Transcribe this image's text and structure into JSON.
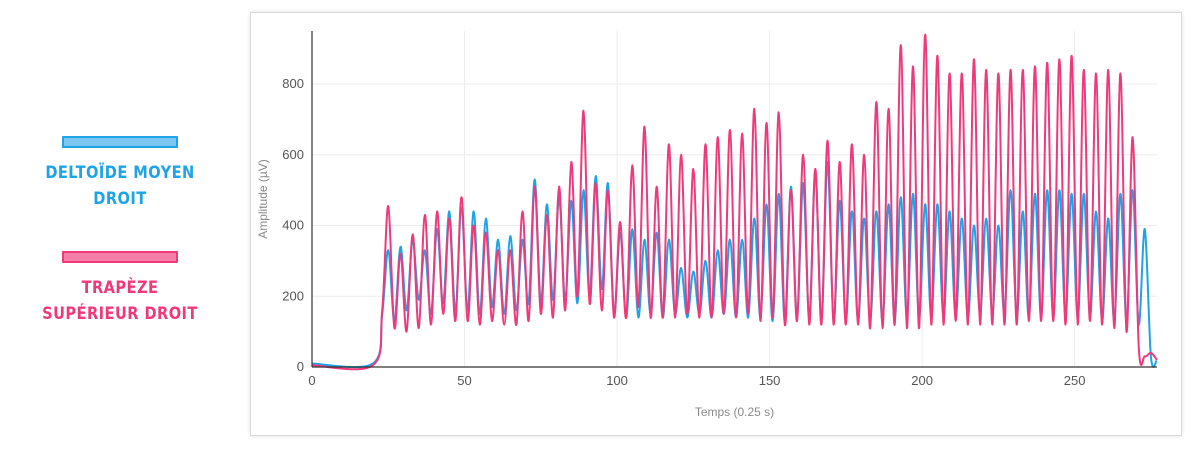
{
  "legend": {
    "items": [
      {
        "label": "DELTOÏDE MOYEN DROIT",
        "color": "#1ea3e6",
        "fill": "#7cc6ef"
      },
      {
        "label": "TRAPÈZE SUPÉRIEUR DROIT",
        "color": "#f0397a",
        "fill": "#f57fa8"
      }
    ]
  },
  "chart_data": {
    "type": "line",
    "xlabel": "Temps (0.25 s)",
    "ylabel": "Amplitude (µV)",
    "xlim": [
      0,
      277
    ],
    "ylim": [
      0,
      950
    ],
    "xticks": [
      "0",
      "50",
      "100",
      "150",
      "200",
      "250"
    ],
    "yticks": [
      "0",
      "200",
      "400",
      "600",
      "800"
    ],
    "grid": true,
    "series": [
      {
        "name": "DELTOÏDE MOYEN DROIT",
        "color": "#1ea3e6",
        "x": [
          0,
          20,
          23,
          25,
          27,
          29,
          31,
          33,
          35,
          37,
          39,
          41,
          43,
          45,
          47,
          49,
          51,
          53,
          55,
          57,
          59,
          61,
          63,
          65,
          67,
          69,
          71,
          73,
          75,
          77,
          79,
          81,
          83,
          85,
          87,
          89,
          91,
          93,
          95,
          97,
          99,
          101,
          103,
          105,
          107,
          109,
          111,
          113,
          115,
          117,
          119,
          121,
          123,
          125,
          127,
          129,
          131,
          133,
          135,
          137,
          139,
          141,
          143,
          145,
          147,
          149,
          151,
          153,
          155,
          157,
          159,
          161,
          163,
          165,
          167,
          169,
          171,
          173,
          175,
          177,
          179,
          181,
          183,
          185,
          187,
          189,
          191,
          193,
          195,
          197,
          199,
          201,
          203,
          205,
          207,
          209,
          211,
          213,
          215,
          217,
          219,
          221,
          223,
          225,
          227,
          229,
          231,
          233,
          235,
          237,
          239,
          241,
          243,
          245,
          247,
          249,
          251,
          253,
          255,
          257,
          259,
          261,
          263,
          265,
          267,
          269,
          271,
          273,
          275,
          277
        ],
        "values": [
          10,
          10,
          150,
          330,
          130,
          340,
          160,
          360,
          190,
          330,
          150,
          390,
          180,
          440,
          160,
          450,
          160,
          440,
          150,
          420,
          170,
          360,
          150,
          370,
          160,
          360,
          180,
          530,
          180,
          460,
          190,
          480,
          190,
          470,
          180,
          500,
          200,
          540,
          220,
          520,
          150,
          380,
          140,
          390,
          140,
          360,
          150,
          380,
          140,
          360,
          150,
          280,
          140,
          270,
          150,
          300,
          140,
          330,
          150,
          360,
          140,
          360,
          140,
          420,
          140,
          460,
          130,
          490,
          130,
          510,
          140,
          520,
          140,
          550,
          130,
          580,
          130,
          470,
          130,
          440,
          130,
          420,
          130,
          440,
          130,
          460,
          130,
          480,
          140,
          490,
          140,
          460,
          140,
          460,
          140,
          440,
          140,
          420,
          140,
          400,
          150,
          420,
          150,
          400,
          150,
          500,
          140,
          440,
          140,
          490,
          140,
          500,
          140,
          500,
          140,
          490,
          140,
          490,
          140,
          440,
          130,
          420,
          130,
          490,
          130,
          500,
          120,
          390,
          30,
          20
        ],
        "samples": [
          10,
          10,
          150,
          330,
          130,
          340,
          160,
          360,
          190,
          330,
          150,
          390,
          180,
          440,
          160,
          450,
          160,
          440,
          150,
          420,
          170,
          360,
          150,
          370,
          160,
          360,
          180,
          530,
          180,
          460,
          190,
          480,
          190,
          470,
          180,
          500,
          200,
          540,
          220,
          520,
          150,
          380,
          140,
          390,
          140,
          360,
          150,
          380,
          140,
          360,
          150,
          280,
          140,
          270,
          150,
          300,
          140,
          330,
          150,
          360,
          140,
          360,
          140,
          420,
          140,
          460,
          130,
          490,
          130,
          510,
          140,
          520,
          140,
          550,
          130,
          580,
          130,
          470,
          130,
          440,
          130,
          420,
          130,
          440,
          130,
          460,
          130,
          480,
          140,
          490,
          140,
          460,
          140,
          460,
          140,
          440,
          140,
          420,
          140,
          400,
          150,
          420,
          150,
          400,
          150,
          500,
          140,
          440,
          140,
          490,
          140,
          500,
          140,
          500,
          140,
          490,
          140,
          490,
          140,
          440,
          130,
          420,
          130,
          490,
          130,
          500,
          120,
          390,
          30,
          20
        ]
      },
      {
        "name": "TRAPÈZE SUPÉRIEUR DROIT",
        "color": "#f0397a",
        "x": [
          0,
          20,
          23,
          25,
          27,
          29,
          31,
          33,
          35,
          37,
          39,
          41,
          43,
          45,
          47,
          49,
          51,
          53,
          55,
          57,
          59,
          61,
          63,
          65,
          67,
          69,
          71,
          73,
          75,
          77,
          79,
          81,
          83,
          85,
          87,
          89,
          91,
          93,
          95,
          97,
          99,
          101,
          103,
          105,
          107,
          109,
          111,
          113,
          115,
          117,
          119,
          121,
          123,
          125,
          127,
          129,
          131,
          133,
          135,
          137,
          139,
          141,
          143,
          145,
          147,
          149,
          151,
          153,
          155,
          157,
          159,
          161,
          163,
          165,
          167,
          169,
          171,
          173,
          175,
          177,
          179,
          181,
          183,
          185,
          187,
          189,
          191,
          193,
          195,
          197,
          199,
          201,
          203,
          205,
          207,
          209,
          211,
          213,
          215,
          217,
          219,
          221,
          223,
          225,
          227,
          229,
          231,
          233,
          235,
          237,
          239,
          241,
          243,
          245,
          247,
          249,
          251,
          253,
          255,
          257,
          259,
          261,
          263,
          265,
          267,
          269,
          271,
          273,
          275,
          277
        ],
        "values": [
          5,
          5,
          160,
          455,
          110,
          320,
          100,
          375,
          110,
          430,
          120,
          440,
          150,
          420,
          130,
          480,
          130,
          400,
          120,
          380,
          130,
          330,
          120,
          330,
          120,
          440,
          130,
          510,
          150,
          430,
          140,
          510,
          160,
          580,
          200,
          725,
          180,
          520,
          160,
          500,
          140,
          410,
          140,
          570,
          170,
          680,
          140,
          510,
          140,
          630,
          140,
          600,
          150,
          560,
          140,
          630,
          140,
          650,
          150,
          670,
          140,
          660,
          150,
          730,
          130,
          690,
          140,
          720,
          120,
          500,
          130,
          600,
          120,
          560,
          120,
          640,
          120,
          580,
          120,
          630,
          120,
          600,
          110,
          750,
          110,
          730,
          120,
          910,
          110,
          850,
          110,
          940,
          120,
          880,
          120,
          830,
          130,
          830,
          120,
          870,
          120,
          840,
          120,
          830,
          120,
          840,
          120,
          840,
          130,
          850,
          130,
          860,
          130,
          870,
          120,
          880,
          120,
          840,
          130,
          830,
          120,
          840,
          110,
          830,
          100,
          650,
          60,
          30,
          40,
          20
        ],
        "samples": [
          5,
          5,
          160,
          455,
          110,
          320,
          100,
          375,
          110,
          430,
          120,
          440,
          150,
          420,
          130,
          480,
          130,
          400,
          120,
          380,
          130,
          330,
          120,
          330,
          120,
          440,
          130,
          510,
          150,
          430,
          140,
          510,
          160,
          580,
          200,
          725,
          180,
          520,
          160,
          500,
          140,
          410,
          140,
          570,
          170,
          680,
          140,
          510,
          140,
          630,
          140,
          600,
          150,
          560,
          140,
          630,
          140,
          650,
          150,
          670,
          140,
          660,
          150,
          730,
          130,
          690,
          140,
          720,
          120,
          500,
          130,
          600,
          120,
          560,
          120,
          640,
          120,
          580,
          120,
          630,
          120,
          600,
          110,
          750,
          110,
          730,
          120,
          910,
          110,
          850,
          110,
          940,
          120,
          880,
          120,
          830,
          130,
          830,
          120,
          870,
          120,
          840,
          120,
          830,
          120,
          840,
          120,
          840,
          130,
          850,
          130,
          860,
          130,
          870,
          120,
          880,
          120,
          840,
          130,
          830,
          120,
          840,
          110,
          830,
          100,
          650,
          60,
          30,
          40,
          20
        ]
      }
    ]
  }
}
